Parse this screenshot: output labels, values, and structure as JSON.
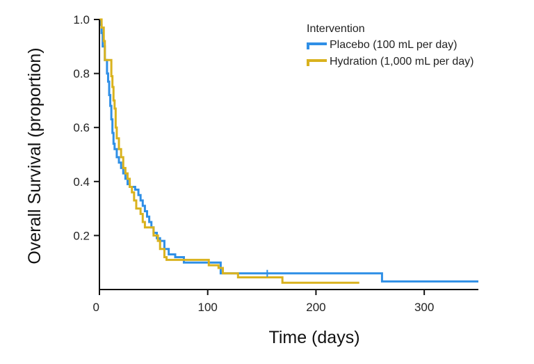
{
  "chart_data": {
    "type": "line",
    "step": true,
    "title": "",
    "xlabel": "Time (days)",
    "ylabel": "Overall Survival (proportion)",
    "xlim": [
      0,
      350
    ],
    "ylim": [
      0,
      1.0
    ],
    "x_ticks": [
      0,
      100,
      200,
      300
    ],
    "y_ticks": [
      0.2,
      0.4,
      0.6,
      0.8,
      1.0
    ],
    "x_tick_labels": [
      "0",
      "100",
      "200",
      "300"
    ],
    "y_tick_labels": [
      "0.2",
      "0.4",
      "0.6",
      "0.8",
      "1.0"
    ],
    "grid": false,
    "legend": {
      "title": "Intervention",
      "placement": "top-right"
    },
    "series": [
      {
        "name": "Placebo (100 mL per day)",
        "color": "#2f8fe6",
        "points": [
          [
            0,
            1.0
          ],
          [
            1,
            0.98
          ],
          [
            2,
            0.95
          ],
          [
            3,
            0.9
          ],
          [
            5,
            0.85
          ],
          [
            7,
            0.8
          ],
          [
            8,
            0.77
          ],
          [
            9,
            0.72
          ],
          [
            10,
            0.68
          ],
          [
            11,
            0.63
          ],
          [
            12,
            0.58
          ],
          [
            13,
            0.54
          ],
          [
            14,
            0.52
          ],
          [
            16,
            0.49
          ],
          [
            18,
            0.47
          ],
          [
            20,
            0.45
          ],
          [
            22,
            0.43
          ],
          [
            24,
            0.41
          ],
          [
            26,
            0.39
          ],
          [
            28,
            0.38
          ],
          [
            31,
            0.38
          ],
          [
            33,
            0.37
          ],
          [
            36,
            0.35
          ],
          [
            38,
            0.33
          ],
          [
            40,
            0.31
          ],
          [
            42,
            0.29
          ],
          [
            44,
            0.27
          ],
          [
            46,
            0.25
          ],
          [
            48,
            0.23
          ],
          [
            50,
            0.21
          ],
          [
            53,
            0.19
          ],
          [
            56,
            0.18
          ],
          [
            60,
            0.15
          ],
          [
            64,
            0.13
          ],
          [
            70,
            0.12
          ],
          [
            78,
            0.1
          ],
          [
            110,
            0.1
          ],
          [
            112,
            0.06
          ],
          [
            150,
            0.06
          ],
          [
            250,
            0.06
          ],
          [
            261,
            0.03
          ],
          [
            350,
            0.03
          ]
        ]
      },
      {
        "name": "Hydration (1,000 mL per day)",
        "color": "#d9b21e",
        "points": [
          [
            0,
            1.0
          ],
          [
            2,
            0.97
          ],
          [
            4,
            0.92
          ],
          [
            5,
            0.85
          ],
          [
            10,
            0.85
          ],
          [
            11,
            0.79
          ],
          [
            12,
            0.75
          ],
          [
            13,
            0.7
          ],
          [
            14,
            0.67
          ],
          [
            15,
            0.6
          ],
          [
            16,
            0.56
          ],
          [
            18,
            0.52
          ],
          [
            20,
            0.49
          ],
          [
            22,
            0.45
          ],
          [
            24,
            0.43
          ],
          [
            26,
            0.41
          ],
          [
            28,
            0.38
          ],
          [
            30,
            0.36
          ],
          [
            32,
            0.33
          ],
          [
            34,
            0.3
          ],
          [
            38,
            0.28
          ],
          [
            40,
            0.25
          ],
          [
            42,
            0.23
          ],
          [
            48,
            0.23
          ],
          [
            50,
            0.2
          ],
          [
            54,
            0.18
          ],
          [
            56,
            0.15
          ],
          [
            60,
            0.12
          ],
          [
            62,
            0.11
          ],
          [
            74,
            0.11
          ],
          [
            100,
            0.11
          ],
          [
            101,
            0.09
          ],
          [
            110,
            0.08
          ],
          [
            114,
            0.06
          ],
          [
            127,
            0.06
          ],
          [
            128,
            0.045
          ],
          [
            150,
            0.045
          ],
          [
            167,
            0.045
          ],
          [
            169,
            0.025
          ],
          [
            240,
            0.025
          ]
        ]
      }
    ]
  }
}
